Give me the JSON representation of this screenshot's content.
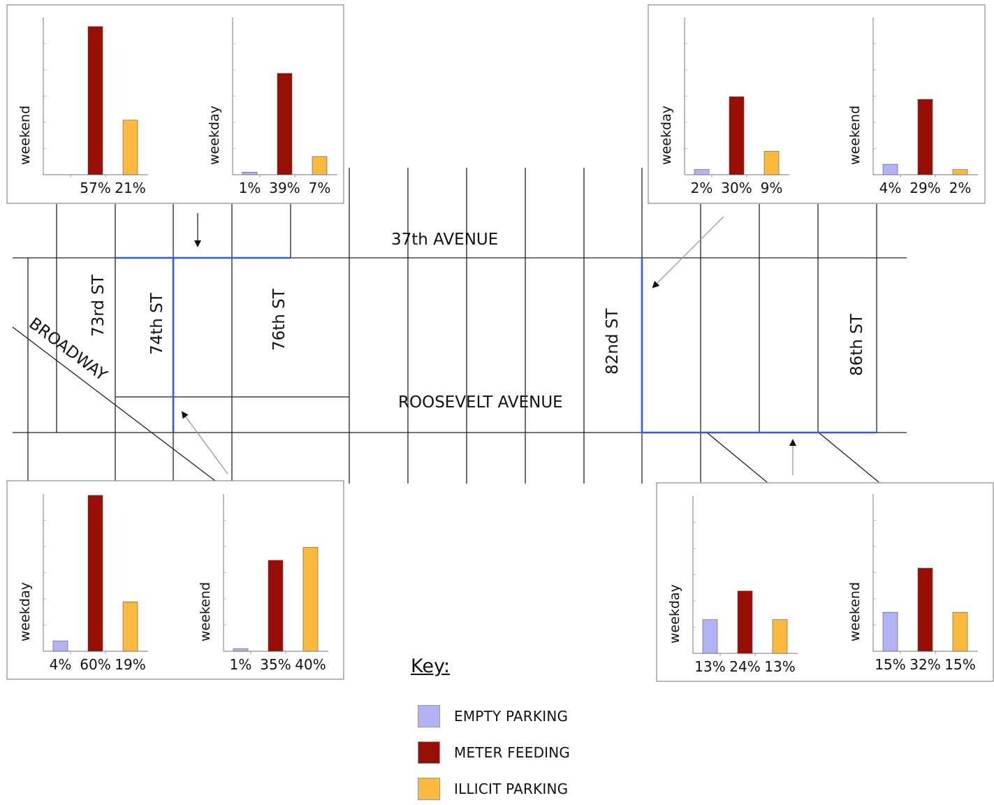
{
  "colors": {
    "empty_parking": "#b2b2f5",
    "meter_feeding": "#980d04",
    "illicit_parking": "#fbb93e",
    "highlight_route": "#2e5ce8",
    "street_line": "#222222"
  },
  "streets": {
    "avenue_37": "37th AVENUE",
    "roosevelt": "ROOSEVELT AVENUE",
    "broadway": "BROADWAY",
    "st_73": "73rd ST",
    "st_74": "74th ST",
    "st_76": "76th ST",
    "st_82": "82nd ST",
    "st_86": "86th ST"
  },
  "key": {
    "title": "Key:",
    "items": [
      {
        "label": "EMPTY PARKING",
        "color": "#b2b2f5"
      },
      {
        "label": "METER FEEDING",
        "color": "#980d04"
      },
      {
        "label": "ILLICIT PARKING",
        "color": "#fbb93e"
      }
    ]
  },
  "chart_data": [
    {
      "type": "bar",
      "panel": "top-left",
      "chart": "left",
      "ylabel": "weekend",
      "categories": [
        "EMPTY PARKING",
        "METER FEEDING",
        "ILLICIT PARKING"
      ],
      "values": [
        null,
        57,
        21
      ],
      "labels": [
        "",
        "57%",
        "21%"
      ]
    },
    {
      "type": "bar",
      "panel": "top-left",
      "chart": "right",
      "ylabel": "weekday",
      "categories": [
        "EMPTY PARKING",
        "METER FEEDING",
        "ILLICIT PARKING"
      ],
      "values": [
        1,
        39,
        7
      ],
      "labels": [
        "1%",
        "39%",
        "7%"
      ]
    },
    {
      "type": "bar",
      "panel": "top-right",
      "chart": "left",
      "ylabel": "weekday",
      "categories": [
        "EMPTY PARKING",
        "METER FEEDING",
        "ILLICIT PARKING"
      ],
      "values": [
        2,
        30,
        9
      ],
      "labels": [
        "2%",
        "30%",
        "9%"
      ]
    },
    {
      "type": "bar",
      "panel": "top-right",
      "chart": "right",
      "ylabel": "weekend",
      "categories": [
        "EMPTY PARKING",
        "METER FEEDING",
        "ILLICIT PARKING"
      ],
      "values": [
        4,
        29,
        2
      ],
      "labels": [
        "4%",
        "29%",
        "2%"
      ]
    },
    {
      "type": "bar",
      "panel": "bottom-left",
      "chart": "left",
      "ylabel": "weekday",
      "categories": [
        "EMPTY PARKING",
        "METER FEEDING",
        "ILLICIT PARKING"
      ],
      "values": [
        4,
        60,
        19
      ],
      "labels": [
        "4%",
        "60%",
        "19%"
      ]
    },
    {
      "type": "bar",
      "panel": "bottom-left",
      "chart": "right",
      "ylabel": "weekend",
      "categories": [
        "EMPTY PARKING",
        "METER FEEDING",
        "ILLICIT PARKING"
      ],
      "values": [
        1,
        35,
        40
      ],
      "labels": [
        "1%",
        "35%",
        "40%"
      ]
    },
    {
      "type": "bar",
      "panel": "bottom-right",
      "chart": "left",
      "ylabel": "weekday",
      "categories": [
        "EMPTY PARKING",
        "METER FEEDING",
        "ILLICIT PARKING"
      ],
      "values": [
        13,
        24,
        13
      ],
      "labels": [
        "13%",
        "24%",
        "13%"
      ]
    },
    {
      "type": "bar",
      "panel": "bottom-right",
      "chart": "right",
      "ylabel": "weekend",
      "categories": [
        "EMPTY PARKING",
        "METER FEEDING",
        "ILLICIT PARKING"
      ],
      "values": [
        15,
        32,
        15
      ],
      "labels": [
        "15%",
        "32%",
        "15%"
      ]
    }
  ]
}
